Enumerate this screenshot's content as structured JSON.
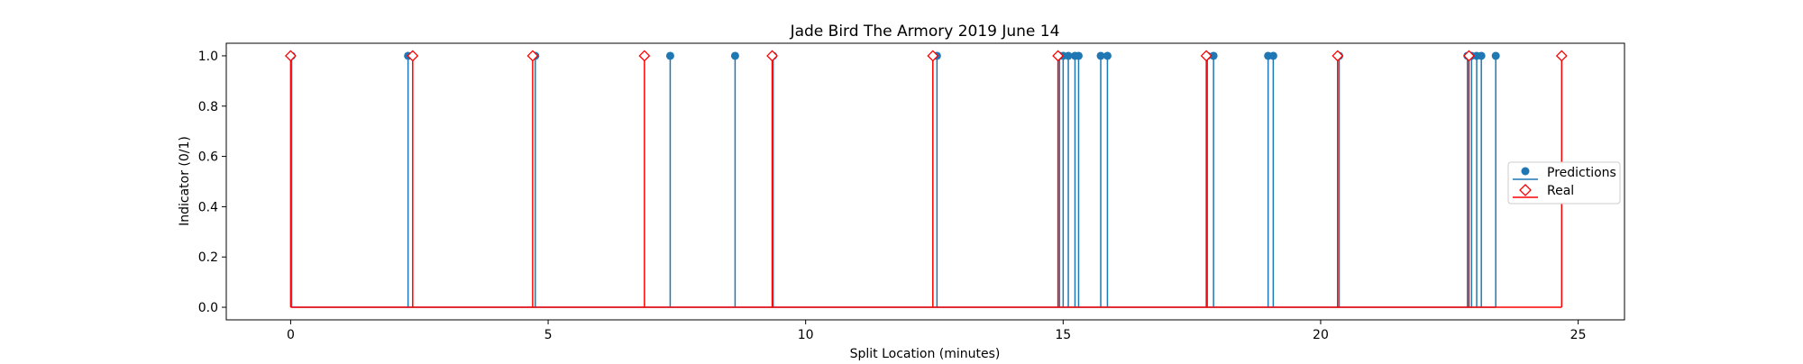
{
  "chart_data": {
    "type": "stem",
    "title": "Jade Bird The Armory 2019 June 14",
    "xlabel": "Split Location (minutes)",
    "ylabel": "Indicator (0/1)",
    "xlim": [
      -1.25,
      25.9
    ],
    "ylim": [
      -0.05,
      1.05
    ],
    "xticks": [
      0,
      5,
      10,
      15,
      20,
      25
    ],
    "xtick_labels": [
      "0",
      "5",
      "10",
      "15",
      "20",
      "25"
    ],
    "yticks": [
      0.0,
      0.2,
      0.4,
      0.6,
      0.8,
      1.0
    ],
    "ytick_labels": [
      "0.0",
      "0.2",
      "0.4",
      "0.6",
      "0.8",
      "1.0"
    ],
    "grid": false,
    "legend_position": "center-right",
    "series": [
      {
        "name": "Predictions",
        "color": "#1f77b4",
        "marker": "circle",
        "x": [
          0.02,
          2.28,
          4.75,
          7.37,
          8.63,
          9.37,
          12.55,
          14.93,
          15.0,
          15.1,
          15.23,
          15.3,
          15.73,
          15.86,
          17.8,
          17.92,
          18.98,
          19.08,
          20.36,
          22.85,
          22.93,
          23.03,
          23.12,
          23.4
        ],
        "y": [
          1,
          1,
          1,
          1,
          1,
          1,
          1,
          1,
          1,
          1,
          1,
          1,
          1,
          1,
          1,
          1,
          1,
          1,
          1,
          1,
          1,
          1,
          1,
          1
        ]
      },
      {
        "name": "Real",
        "color": "#ff0000",
        "marker": "diamond-open",
        "x": [
          0.0,
          2.37,
          4.7,
          6.87,
          9.35,
          12.47,
          14.9,
          17.78,
          20.33,
          22.88,
          24.68
        ],
        "y": [
          1,
          1,
          1,
          1,
          1,
          1,
          1,
          1,
          1,
          1,
          1
        ]
      }
    ]
  }
}
